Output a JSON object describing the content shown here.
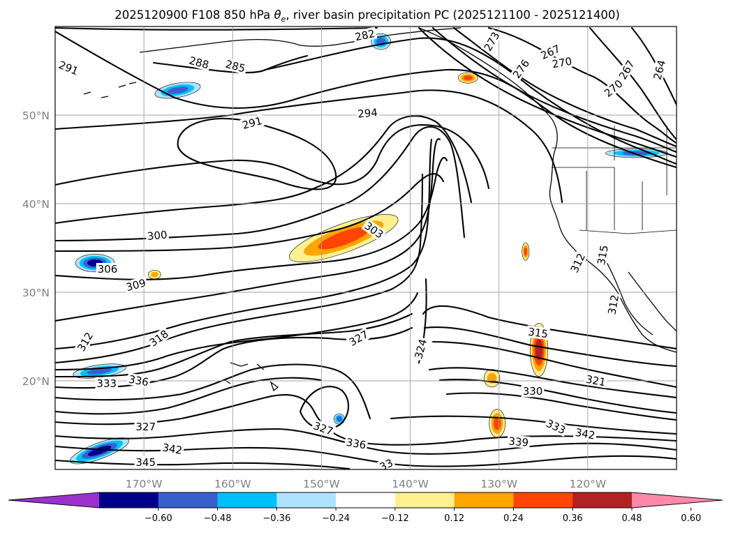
{
  "title": {
    "prefix": "2025120900 F108 850 hPa ",
    "symbol": "θ",
    "symbol_sub": "e",
    "suffix": ", river basin precipitation PC (2025121100 - 2025121400)"
  },
  "map": {
    "projection": "equirectangular",
    "lon_range": [
      -180,
      -110
    ],
    "lat_range": [
      10,
      60
    ],
    "lat_ticks": [
      {
        "lat": 20,
        "label": "20°N"
      },
      {
        "lat": 30,
        "label": "30°N"
      },
      {
        "lat": 40,
        "label": "40°N"
      },
      {
        "lat": 50,
        "label": "50°N"
      }
    ],
    "lon_ticks": [
      {
        "lon": -170,
        "label": "170°W"
      },
      {
        "lon": -160,
        "label": "160°W"
      },
      {
        "lon": -150,
        "label": "150°W"
      },
      {
        "lon": -140,
        "label": "140°W"
      },
      {
        "lon": -130,
        "label": "130°W"
      },
      {
        "lon": -120,
        "label": "120°W"
      }
    ],
    "gridlines": true,
    "contour_field": "850 hPa equivalent potential temperature (K)",
    "contour_labels": [
      {
        "text": "291",
        "lon": -178.5,
        "lat": 55.3,
        "rot": 22
      },
      {
        "text": "288",
        "lon": -163.8,
        "lat": 55.9,
        "rot": 15
      },
      {
        "text": "285",
        "lon": -159.7,
        "lat": 55.5,
        "rot": 15
      },
      {
        "text": "282",
        "lon": -145.1,
        "lat": 59.0,
        "rot": -12
      },
      {
        "text": "273",
        "lon": -130.8,
        "lat": 58.3,
        "rot": -60
      },
      {
        "text": "276",
        "lon": -127.5,
        "lat": 55.2,
        "rot": -55
      },
      {
        "text": "267",
        "lon": -124.2,
        "lat": 57.1,
        "rot": -25
      },
      {
        "text": "270",
        "lon": -122.9,
        "lat": 55.9,
        "rot": -10
      },
      {
        "text": "267",
        "lon": -115.6,
        "lat": 55.1,
        "rot": -60
      },
      {
        "text": "270",
        "lon": -117.1,
        "lat": 53.0,
        "rot": -40
      },
      {
        "text": "264",
        "lon": -111.9,
        "lat": 55.1,
        "rot": -75
      },
      {
        "text": "291",
        "lon": -157.8,
        "lat": 49.1,
        "rot": -15
      },
      {
        "text": "294",
        "lon": -144.8,
        "lat": 50.2,
        "rot": -5
      },
      {
        "text": "300",
        "lon": -168.5,
        "lat": 36.4,
        "rot": -5
      },
      {
        "text": "303",
        "lon": -144.1,
        "lat": 37.0,
        "rot": 35
      },
      {
        "text": "306",
        "lon": -174.1,
        "lat": 32.6,
        "rot": 0
      },
      {
        "text": "309",
        "lon": -170.9,
        "lat": 30.8,
        "rot": -15
      },
      {
        "text": "312",
        "lon": -176.6,
        "lat": 24.4,
        "rot": -60
      },
      {
        "text": "318",
        "lon": -168.3,
        "lat": 24.8,
        "rot": -35
      },
      {
        "text": "327",
        "lon": -145.8,
        "lat": 24.8,
        "rot": -30
      },
      {
        "text": "324",
        "lon": -138.8,
        "lat": 23.6,
        "rot": -75
      },
      {
        "text": "315",
        "lon": -125.6,
        "lat": 25.4,
        "rot": 8
      },
      {
        "text": "312",
        "lon": -121.1,
        "lat": 33.3,
        "rot": -65
      },
      {
        "text": "315",
        "lon": -118.3,
        "lat": 34.2,
        "rot": -80
      },
      {
        "text": "312",
        "lon": -117.1,
        "lat": 28.6,
        "rot": -80
      },
      {
        "text": "333",
        "lon": -174.2,
        "lat": 19.7,
        "rot": 0
      },
      {
        "text": "336",
        "lon": -170.6,
        "lat": 20.0,
        "rot": 10
      },
      {
        "text": "330",
        "lon": -126.2,
        "lat": 18.8,
        "rot": 0
      },
      {
        "text": "321",
        "lon": -119.1,
        "lat": 20.0,
        "rot": 10
      },
      {
        "text": "327",
        "lon": -169.8,
        "lat": 14.8,
        "rot": 0
      },
      {
        "text": "327",
        "lon": -149.8,
        "lat": 14.6,
        "rot": 20
      },
      {
        "text": "333",
        "lon": -123.6,
        "lat": 14.8,
        "rot": 25
      },
      {
        "text": "342",
        "lon": -166.8,
        "lat": 12.3,
        "rot": 10
      },
      {
        "text": "336",
        "lon": -146.1,
        "lat": 12.9,
        "rot": 10
      },
      {
        "text": "339",
        "lon": -127.8,
        "lat": 13.1,
        "rot": 5
      },
      {
        "text": "342",
        "lon": -120.3,
        "lat": 14.0,
        "rot": 10
      },
      {
        "text": "345",
        "lon": -169.8,
        "lat": 10.8,
        "rot": 0
      },
      {
        "text": "33",
        "lon": -142.7,
        "lat": 10.5,
        "rot": -25
      }
    ]
  },
  "shading": {
    "variable": "river basin precipitation PC",
    "positive_blobs": [
      {
        "name": "subtropical-jet-plume",
        "lon": -147.5,
        "lat": 36.1,
        "rx_deg": 6.5,
        "ry_deg": 1.6,
        "rot": -20,
        "max_level": 0.36
      },
      {
        "name": "offshore-nw-coast",
        "lon": -133.5,
        "lat": 54.2,
        "rx_deg": 1.1,
        "ry_deg": 0.6,
        "rot": 0,
        "max_level": 0.36
      },
      {
        "name": "subtropical-band-north",
        "lon": -125.5,
        "lat": 23.5,
        "rx_deg": 1.0,
        "ry_deg": 3.0,
        "rot": 0,
        "max_level": 0.48
      },
      {
        "name": "subtropical-band-south",
        "lon": -130.2,
        "lat": 15.2,
        "rx_deg": 0.9,
        "ry_deg": 1.6,
        "rot": 0,
        "max_level": 0.36
      },
      {
        "name": "central-pacific-east",
        "lon": -130.8,
        "lat": 20.3,
        "rx_deg": 0.9,
        "ry_deg": 1.0,
        "rot": 0,
        "max_level": 0.24
      },
      {
        "name": "offshore-california",
        "lon": -127.0,
        "lat": 34.6,
        "rx_deg": 0.4,
        "ry_deg": 1.0,
        "rot": 0,
        "max_level": 0.36
      },
      {
        "name": "near-dateline-north",
        "lon": -168.8,
        "lat": 32.0,
        "rx_deg": 0.7,
        "ry_deg": 0.5,
        "rot": 0,
        "max_level": 0.24
      }
    ],
    "negative_blobs": [
      {
        "name": "north-pacific-high-lat",
        "lon": -166.2,
        "lat": 52.8,
        "rx_deg": 2.6,
        "ry_deg": 0.8,
        "rot": -10,
        "max_level": -0.36
      },
      {
        "name": "gulf-of-alaska",
        "lon": -143.3,
        "lat": 58.3,
        "rx_deg": 1.1,
        "ry_deg": 0.9,
        "rot": 0,
        "max_level": -0.36
      },
      {
        "name": "pacific-northwest",
        "lon": -114.5,
        "lat": 45.7,
        "rx_deg": 3.5,
        "ry_deg": 0.5,
        "rot": 0,
        "max_level": -0.36
      },
      {
        "name": "near-dateline-32n",
        "lon": -175.5,
        "lat": 33.3,
        "rx_deg": 2.2,
        "ry_deg": 1.0,
        "rot": 0,
        "max_level": -0.48
      },
      {
        "name": "near-dateline-21n",
        "lon": -175.0,
        "lat": 21.1,
        "rx_deg": 3.0,
        "ry_deg": 0.7,
        "rot": -8,
        "max_level": -0.36
      },
      {
        "name": "dateline-12n",
        "lon": -175.0,
        "lat": 12.1,
        "rx_deg": 3.5,
        "ry_deg": 0.9,
        "rot": -20,
        "max_level": -0.48
      },
      {
        "name": "central-pacific-15n",
        "lon": -148.0,
        "lat": 15.7,
        "rx_deg": 0.6,
        "ry_deg": 0.6,
        "rot": 0,
        "max_level": -0.36
      }
    ]
  },
  "colorbar": {
    "ticks": [
      "−0.60",
      "−0.48",
      "−0.36",
      "−0.24",
      "−0.12",
      "0.12",
      "0.24",
      "0.36",
      "0.48",
      "0.60"
    ],
    "tick_values": [
      -0.6,
      -0.48,
      -0.36,
      -0.24,
      -0.12,
      0.12,
      0.24,
      0.36,
      0.48,
      0.6
    ],
    "colors": [
      "#9932cc",
      "#00008b",
      "#3a5fcd",
      "#00bfff",
      "#b0e2ff",
      "#ffffff",
      "#fff08f",
      "#ffa500",
      "#ff4500",
      "#b22222",
      "#ff88aa"
    ],
    "extend": "both"
  }
}
